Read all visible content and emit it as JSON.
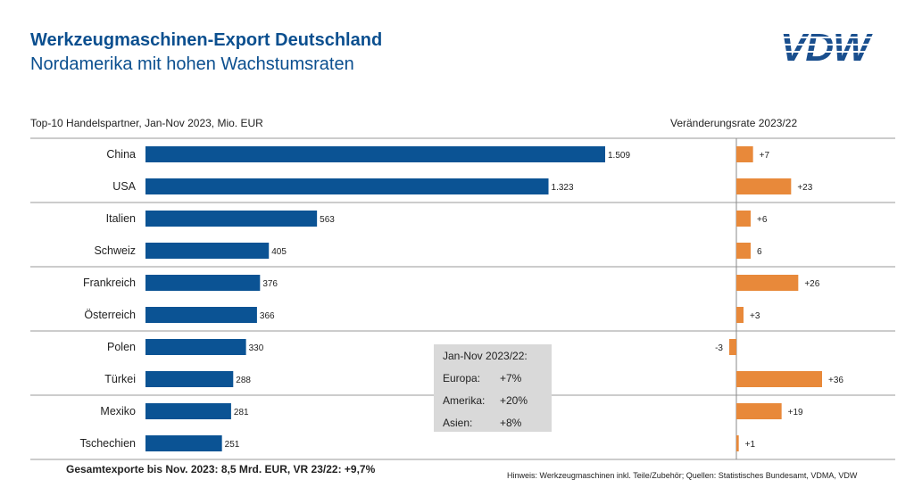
{
  "header": {
    "title": "Werkzeugmaschinen-Export Deutschland",
    "subtitle": "Nordamerika mit hohen Wachstumsraten",
    "logo_text": "VDW"
  },
  "chart_data": [
    {
      "type": "bar",
      "orientation": "horizontal",
      "title": "Top-10 Handelspartner, Jan-Nov 2023, Mio. EUR",
      "categories": [
        "China",
        "USA",
        "Italien",
        "Schweiz",
        "Frankreich",
        "Österreich",
        "Polen",
        "Türkei",
        "Mexiko",
        "Tschechien"
      ],
      "values": [
        1509,
        1323,
        563,
        405,
        376,
        366,
        330,
        288,
        281,
        251
      ],
      "value_labels": [
        "1.509",
        "1.323",
        "563",
        "405",
        "376",
        "366",
        "330",
        "288",
        "281",
        "251"
      ],
      "color": "#0b5394",
      "xlim": [
        0,
        1509
      ]
    },
    {
      "type": "bar",
      "orientation": "horizontal",
      "title": "Veränderungsrate 2023/22",
      "categories": [
        "China",
        "USA",
        "Italien",
        "Schweiz",
        "Frankreich",
        "Österreich",
        "Polen",
        "Türkei",
        "Mexiko",
        "Tschechien"
      ],
      "values": [
        7,
        23,
        6,
        6,
        26,
        3,
        -3,
        36,
        19,
        1
      ],
      "value_labels": [
        "+7",
        "+23",
        "+6",
        "6",
        "+26",
        "+3",
        "-3",
        "+36",
        "+19",
        "+1"
      ],
      "color": "#e8893a",
      "xlim": [
        -3,
        36
      ]
    }
  ],
  "info_box": {
    "title": "Jan-Nov 2023/22:",
    "rows": [
      {
        "label": "Europa:",
        "value": "+7%"
      },
      {
        "label": "Amerika:",
        "value": "+20%"
      },
      {
        "label": "Asien:",
        "value": "+8%"
      }
    ]
  },
  "footer": {
    "left": "Gesamtexporte bis Nov. 2023: 8,5 Mrd. EUR, VR 23/22: +9,7%",
    "right": "Hinweis: Werkzeugmaschinen inkl. Teile/Zubehör; Quellen: Statistisches Bundesamt, VDMA, VDW"
  }
}
